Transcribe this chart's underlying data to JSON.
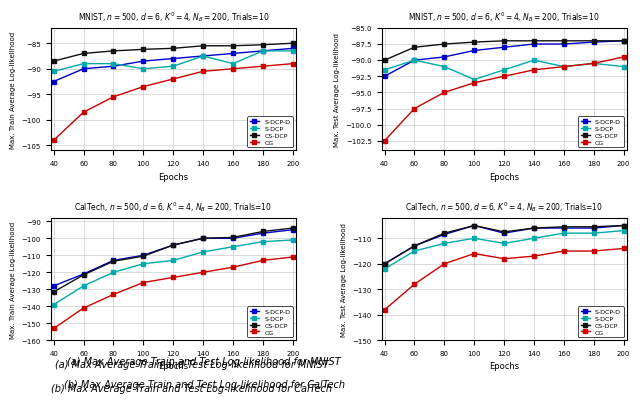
{
  "epochs": [
    40,
    60,
    80,
    100,
    120,
    140,
    160,
    180,
    200
  ],
  "mnist_train": {
    "title": "MNIST, $n=500$, $d=6$, $K^{\\prime}=4$, $N_B=200$, Trials=10",
    "ylabel": "Max. Train Average Log-likelihood",
    "sdcpd": [
      -92.5,
      -90.0,
      -89.5,
      -88.5,
      -88.0,
      -87.5,
      -87.0,
      -86.5,
      -86.0
    ],
    "sdcp": [
      -90.5,
      -89.0,
      -89.0,
      -90.0,
      -89.5,
      -87.5,
      -89.0,
      -86.5,
      -86.5
    ],
    "csdcp": [
      -88.5,
      -87.0,
      -86.5,
      -86.2,
      -86.0,
      -85.5,
      -85.5,
      -85.3,
      -85.0
    ],
    "cg": [
      -104.0,
      -98.5,
      -95.5,
      -93.5,
      -92.0,
      -90.5,
      -90.0,
      -89.5,
      -89.0
    ]
  },
  "mnist_test": {
    "title": "MNIST, $n=500$, $d=6$, $K^{\\prime}=4$, $N_B=200$, Trials=10",
    "ylabel": "Max. Test Average Log-likelihood",
    "sdcpd": [
      -92.5,
      -90.0,
      -89.5,
      -88.5,
      -88.0,
      -87.5,
      -87.5,
      -87.2,
      -87.0
    ],
    "sdcp": [
      -91.5,
      -90.0,
      -91.0,
      -93.0,
      -91.5,
      -90.0,
      -91.0,
      -90.5,
      -91.0
    ],
    "csdcp": [
      -90.0,
      -88.0,
      -87.5,
      -87.2,
      -87.0,
      -87.0,
      -87.0,
      -87.0,
      -87.0
    ],
    "cg": [
      -102.5,
      -97.5,
      -95.0,
      -93.5,
      -92.5,
      -91.5,
      -91.0,
      -90.5,
      -89.5
    ]
  },
  "caltech_train": {
    "title": "CalTech, $n=500$, $d=6$, $K^{\\prime}=4$, $N_B=200$, Trials=10",
    "ylabel": "Max. Train Average Log-likelihood",
    "sdcpd": [
      -128.0,
      -121.0,
      -113.0,
      -110.0,
      -104.0,
      -100.0,
      -100.0,
      -97.0,
      -95.0
    ],
    "sdcp": [
      -139.0,
      -128.0,
      -120.0,
      -115.0,
      -113.0,
      -108.0,
      -105.0,
      -102.0,
      -101.0
    ],
    "csdcp": [
      -131.5,
      -121.5,
      -113.5,
      -110.5,
      -104.0,
      -100.0,
      -99.5,
      -96.0,
      -94.0
    ],
    "cg": [
      -153.0,
      -141.0,
      -133.0,
      -126.0,
      -123.0,
      -120.0,
      -117.0,
      -113.0,
      -111.0
    ]
  },
  "caltech_test": {
    "title": "CalTech, $n=500$, $d=6$, $K^{\\prime}=4$, $N_B=200$, Trials=10",
    "ylabel": "Max. Test Average Log-likelihood",
    "sdcpd": [
      -120.0,
      -113.0,
      -108.5,
      -105.0,
      -108.0,
      -106.0,
      -106.0,
      -106.0,
      -105.0
    ],
    "sdcp": [
      -122.0,
      -115.0,
      -112.0,
      -110.0,
      -112.0,
      -110.0,
      -108.0,
      -108.0,
      -107.0
    ],
    "csdcp": [
      -120.0,
      -113.0,
      -108.0,
      -105.0,
      -107.5,
      -106.0,
      -105.5,
      -105.5,
      -105.0
    ],
    "cg": [
      -138.0,
      -128.0,
      -120.0,
      -116.0,
      -118.0,
      -117.0,
      -115.0,
      -115.0,
      -114.0
    ]
  },
  "colors": {
    "sdcpd": "#0000cc",
    "sdcp": "#00aaaa",
    "csdcp": "#111111",
    "cg": "#cc0000"
  },
  "xlabel": "Epochs",
  "caption_a": "(a) Max Average Train and Test Log-likelihood for MNIST",
  "caption_b": "(b) Max Average Train and Test Log-likelihood for CalTech",
  "mnist_train_ylim": [
    -106,
    -82
  ],
  "mnist_test_ylim": [
    -104,
    -85
  ],
  "caltech_train_ylim": [
    -160,
    -88
  ],
  "caltech_test_ylim": [
    -150,
    -102
  ]
}
